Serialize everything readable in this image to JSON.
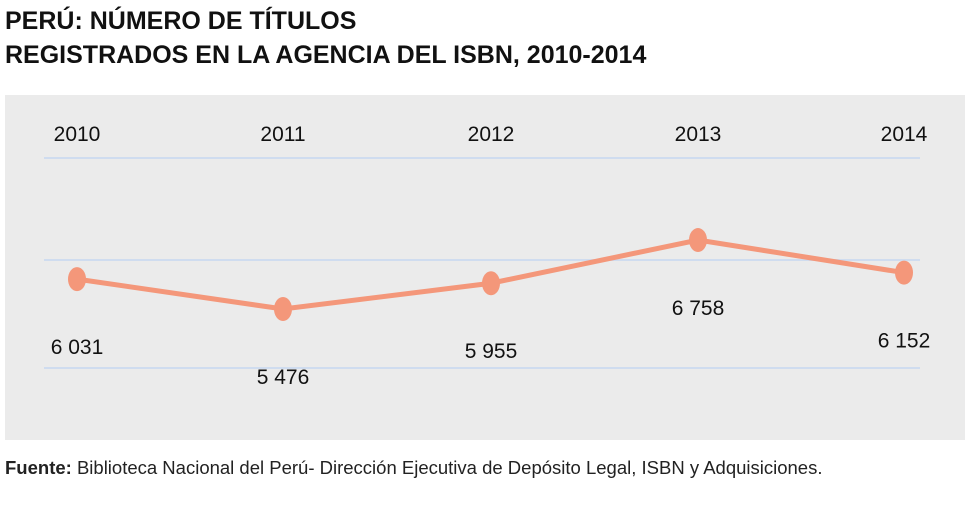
{
  "title_line1": "PERÚ: NÚMERO DE TÍTULOS",
  "title_line2": "REGISTRADOS EN LA AGENCIA DEL ISBN, 2010-2014",
  "source_label": "Fuente:",
  "source_text": " Biblioteca Nacional del Perú- Dirección Ejecutiva de Depósito Legal, ISBN y Adquisiciones.",
  "chart_data": {
    "type": "line",
    "categories": [
      "2010",
      "2011",
      "2012",
      "2013",
      "2014"
    ],
    "values": [
      6031,
      5476,
      5955,
      6758,
      6152
    ],
    "data_labels": [
      "6 031",
      "5 476",
      "5 955",
      "6 758",
      "6 152"
    ],
    "x_axis_position": "top",
    "grid": true,
    "colors": {
      "line": "#f4977a",
      "background": "#ebebeb",
      "grid": "#cfdcef"
    }
  }
}
